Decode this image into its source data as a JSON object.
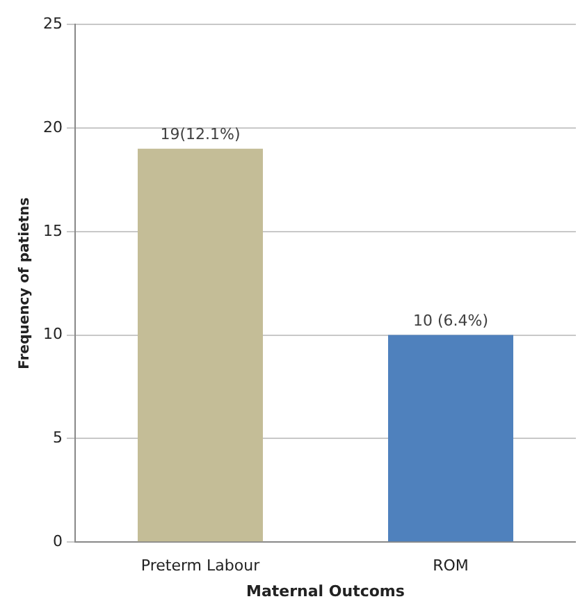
{
  "chart_data": {
    "type": "bar",
    "xlabel": "Maternal Outcoms",
    "ylabel": "Frequency of patietns",
    "categories": [
      "Preterm Labour",
      "ROM"
    ],
    "values": [
      19,
      10
    ],
    "colors": [
      "#c4bd97",
      "#4f81bd"
    ],
    "value_labels": [
      "19(12.1%)",
      "10 (6.4%)"
    ],
    "ylim": [
      0,
      25
    ],
    "yticks": [
      0,
      5,
      10,
      15,
      20,
      25
    ],
    "grid": "y"
  }
}
